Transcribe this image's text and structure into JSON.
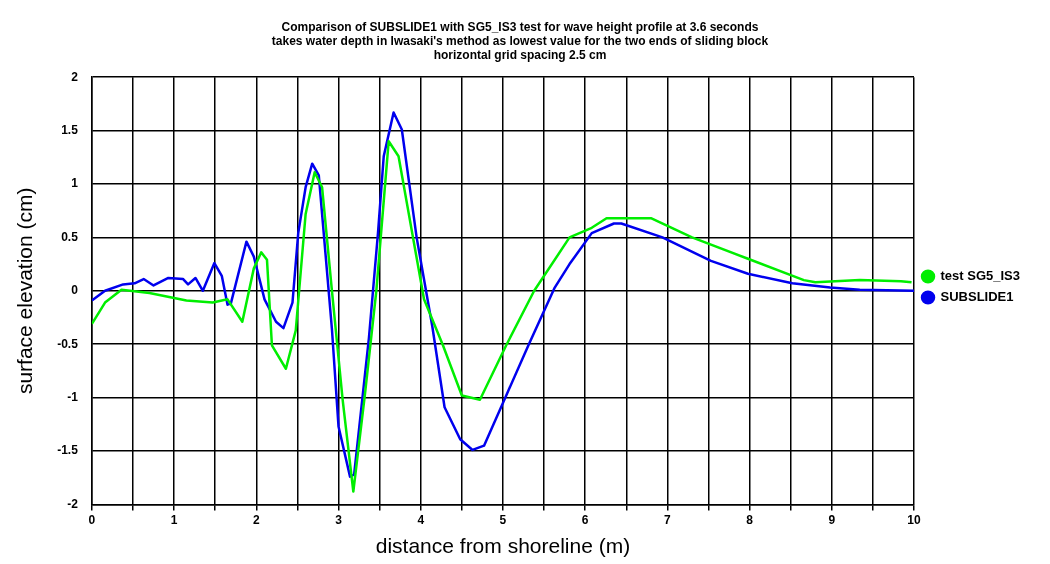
{
  "chart_data": {
    "type": "line",
    "title": [
      "Comparison of SUBSLIDE1 with SG5_IS3 test for wave height profile at 3.6 seconds",
      "takes water depth in Iwasaki's method as lowest value for the two ends of sliding block",
      "horizontal grid spacing 2.5 cm"
    ],
    "xlabel": "distance from shoreline (m)",
    "ylabel": "surface elevation (cm)",
    "xlim": [
      0,
      10
    ],
    "ylim": [
      -2,
      2
    ],
    "xticks": [
      0,
      {
        "value": 0.5,
        "label": null
      },
      1,
      {
        "value": 1.5,
        "label": null
      },
      2,
      {
        "value": 2.5,
        "label": null
      },
      3,
      {
        "value": 3.5,
        "label": null
      },
      4,
      {
        "value": 4.5,
        "label": null
      },
      5,
      {
        "value": 5.5,
        "label": null
      },
      6,
      {
        "value": 6.5,
        "label": null
      },
      7,
      {
        "value": 7.5,
        "label": null
      },
      8,
      {
        "value": 8.5,
        "label": null
      },
      9,
      {
        "value": 9.5,
        "label": null
      },
      10
    ],
    "yticks": [
      -2,
      -1.5,
      -1,
      -0.5,
      0,
      0.5,
      1,
      1.5,
      2
    ],
    "grid": true,
    "legend": "right",
    "line_style": "solid",
    "series": [
      {
        "name": "test SG5_IS3",
        "color": "#00ee00",
        "x": [
          0,
          0.16,
          0.36,
          0.7,
          1.15,
          1.47,
          1.65,
          1.83,
          1.97,
          2.06,
          2.13,
          2.19,
          2.36,
          2.48,
          2.6,
          2.71,
          2.8,
          2.92,
          3.05,
          3.18,
          3.32,
          3.46,
          3.61,
          3.73,
          4.04,
          4.27,
          4.5,
          4.72,
          5.04,
          5.38,
          5.81,
          6.08,
          6.26,
          6.8,
          7.3,
          7.98,
          8.66,
          8.8,
          9.34,
          9.84,
          9.97
        ],
        "values": [
          -0.31,
          -0.11,
          0.01,
          -0.02,
          -0.09,
          -0.11,
          -0.08,
          -0.29,
          0.21,
          0.36,
          0.29,
          -0.51,
          -0.73,
          -0.37,
          0.72,
          1.11,
          0.97,
          0,
          -1.02,
          -1.88,
          -0.98,
          0,
          1.4,
          1.26,
          -0.08,
          -0.51,
          -0.98,
          -1.02,
          -0.51,
          0,
          0.5,
          0.59,
          0.68,
          0.68,
          0.5,
          0.3,
          0.1,
          0.08,
          0.1,
          0.09,
          0.08
        ]
      },
      {
        "name": "SUBSLIDE1",
        "color": "#0000ee",
        "x": [
          0,
          0.16,
          0.38,
          0.52,
          0.63,
          0.75,
          0.93,
          1.11,
          1.17,
          1.26,
          1.35,
          1.49,
          1.58,
          1.65,
          1.69,
          1.88,
          1.97,
          2.1,
          2.24,
          2.33,
          2.44,
          2.51,
          2.6,
          2.68,
          2.76,
          2.92,
          3.0,
          3.14,
          3.19,
          3.37,
          3.48,
          3.55,
          3.67,
          3.77,
          3.95,
          4.14,
          4.29,
          4.48,
          4.63,
          4.77,
          5.04,
          5.31,
          5.63,
          5.81,
          6.08,
          6.35,
          6.44,
          6.94,
          7.53,
          7.98,
          8.52,
          8.98,
          9.34,
          10
        ],
        "values": [
          -0.09,
          0,
          0.06,
          0.07,
          0.11,
          0.05,
          0.12,
          0.11,
          0.06,
          0.12,
          0,
          0.26,
          0.14,
          -0.13,
          -0.12,
          0.46,
          0.32,
          -0.08,
          -0.29,
          -0.35,
          -0.11,
          0.54,
          0.97,
          1.19,
          1.08,
          -0.36,
          -1.27,
          -1.74,
          -1.72,
          -0.44,
          0.54,
          1.26,
          1.67,
          1.51,
          0.5,
          -0.33,
          -1.09,
          -1.39,
          -1.49,
          -1.45,
          -0.98,
          -0.51,
          0.03,
          0.25,
          0.54,
          0.63,
          0.63,
          0.5,
          0.28,
          0.16,
          0.07,
          0.03,
          0.01,
          0
        ]
      }
    ]
  }
}
